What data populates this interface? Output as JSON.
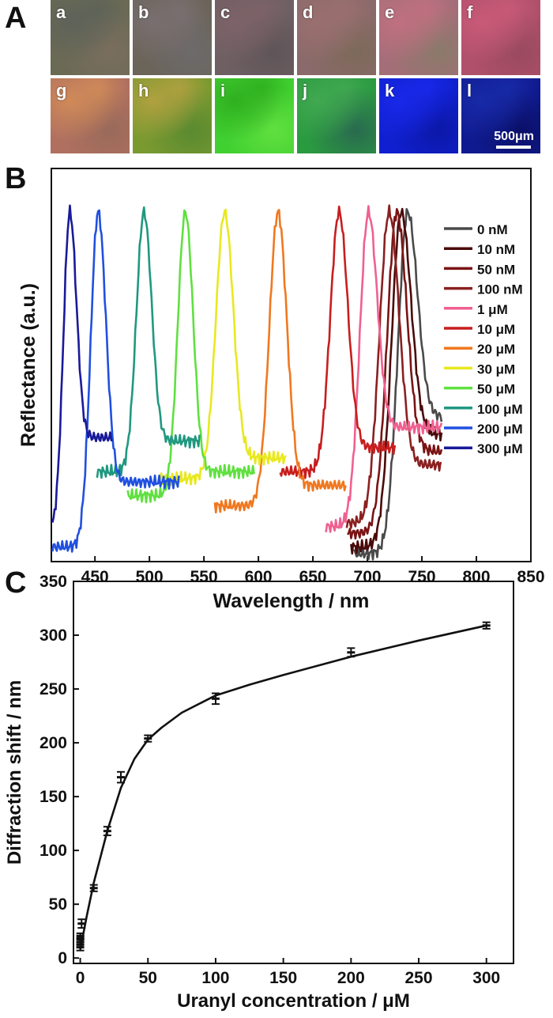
{
  "panel_labels": {
    "a": "A",
    "b": "B",
    "c": "C"
  },
  "photos": {
    "tiles": [
      {
        "letter": "a",
        "colors": [
          "#6b6a55",
          "#5e6358",
          "#7a6e5e"
        ]
      },
      {
        "letter": "b",
        "colors": [
          "#6a6459",
          "#7a6f70",
          "#6d6a6b"
        ]
      },
      {
        "letter": "c",
        "colors": [
          "#6e5f63",
          "#7d6368",
          "#5f5558"
        ]
      },
      {
        "letter": "d",
        "colors": [
          "#8a6a6a",
          "#9b6f70",
          "#7d6a5a"
        ]
      },
      {
        "letter": "e",
        "colors": [
          "#a46e78",
          "#c07080",
          "#8a7a6a"
        ]
      },
      {
        "letter": "f",
        "colors": [
          "#b0506a",
          "#c85a78",
          "#9a4a60"
        ]
      },
      {
        "letter": "g",
        "colors": [
          "#b07060",
          "#d08a58",
          "#9a6a5a"
        ]
      },
      {
        "letter": "h",
        "colors": [
          "#7a9a30",
          "#b0a040",
          "#5a8a30"
        ]
      },
      {
        "letter": "i",
        "colors": [
          "#40d030",
          "#30b020",
          "#60e040"
        ]
      },
      {
        "letter": "j",
        "colors": [
          "#2a9a40",
          "#40a850",
          "#2a6a50"
        ]
      },
      {
        "letter": "k",
        "colors": [
          "#1020d0",
          "#1828e8",
          "#0c18a8"
        ]
      },
      {
        "letter": "l",
        "colors": [
          "#101a90",
          "#182aa8",
          "#0a1068"
        ]
      }
    ],
    "scale_bar": "500μm"
  },
  "chart_data": [
    {
      "type": "line",
      "xlabel": "Wavelength / nm",
      "ylabel": "Reflectance (a.u.)",
      "xlim": [
        410,
        850
      ],
      "xticks": [
        450,
        500,
        550,
        600,
        650,
        700,
        750,
        800,
        850
      ],
      "legend_position": "right",
      "series": [
        {
          "name": "0 nM",
          "color": "#4a4a4a",
          "peak": 737,
          "start": 688,
          "end": 768,
          "base_left": 0.0,
          "base_right": 0.4,
          "width": 9
        },
        {
          "name": "10 nM",
          "color": "#4a0a0a",
          "peak": 731,
          "start": 685,
          "end": 768,
          "base_left": 0.02,
          "base_right": 0.35,
          "width": 9
        },
        {
          "name": "50 nM",
          "color": "#7a1414",
          "peak": 727,
          "start": 682,
          "end": 768,
          "base_left": 0.06,
          "base_right": 0.3,
          "width": 9
        },
        {
          "name": "100 nM",
          "color": "#8a2020",
          "peak": 720,
          "start": 681,
          "end": 768,
          "base_left": 0.09,
          "base_right": 0.26,
          "width": 9
        },
        {
          "name": "1 μM",
          "color": "#f06090",
          "peak": 701,
          "start": 662,
          "end": 768,
          "base_left": 0.08,
          "base_right": 0.37,
          "width": 8
        },
        {
          "name": "10 μM",
          "color": "#c81e1e",
          "peak": 674,
          "start": 620,
          "end": 726,
          "base_left": 0.24,
          "base_right": 0.31,
          "width": 8
        },
        {
          "name": "20 μM",
          "color": "#f07820",
          "peak": 618,
          "start": 560,
          "end": 680,
          "base_left": 0.14,
          "base_right": 0.2,
          "width": 8
        },
        {
          "name": "30 μM",
          "color": "#e8e820",
          "peak": 569,
          "start": 510,
          "end": 625,
          "base_left": 0.22,
          "base_right": 0.28,
          "width": 8
        },
        {
          "name": "50 μM",
          "color": "#60e040",
          "peak": 533,
          "start": 480,
          "end": 596,
          "base_left": 0.17,
          "base_right": 0.24,
          "width": 7
        },
        {
          "name": "100 μM",
          "color": "#209880",
          "peak": 495,
          "start": 452,
          "end": 546,
          "base_left": 0.24,
          "base_right": 0.33,
          "width": 7
        },
        {
          "name": "200 μM",
          "color": "#2050e0",
          "peak": 453,
          "start": 411,
          "end": 527,
          "base_left": 0.02,
          "base_right": 0.21,
          "width": 7
        },
        {
          "name": "300 μM",
          "color": "#1a1a9a",
          "peak": 427,
          "start": 411,
          "end": 466,
          "base_left": 0.06,
          "base_right": 0.34,
          "width": 6
        }
      ]
    },
    {
      "type": "scatter",
      "xlabel": "Uranyl concentration / μM",
      "ylabel": "Diffraction shift / nm",
      "xlim": [
        -5,
        320
      ],
      "ylim": [
        -5,
        350
      ],
      "xticks": [
        0,
        50,
        100,
        150,
        200,
        250,
        300
      ],
      "yticks": [
        0,
        50,
        100,
        150,
        200,
        250,
        300,
        350
      ],
      "points": [
        {
          "x": 0,
          "y": 10,
          "err": 3
        },
        {
          "x": 0.01,
          "y": 15,
          "err": 3
        },
        {
          "x": 0.05,
          "y": 18,
          "err": 3
        },
        {
          "x": 0.1,
          "y": 20,
          "err": 3
        },
        {
          "x": 1,
          "y": 32,
          "err": 4
        },
        {
          "x": 10,
          "y": 65,
          "err": 3
        },
        {
          "x": 20,
          "y": 118,
          "err": 4
        },
        {
          "x": 30,
          "y": 168,
          "err": 5
        },
        {
          "x": 50,
          "y": 204,
          "err": 3
        },
        {
          "x": 100,
          "y": 241,
          "err": 5
        },
        {
          "x": 200,
          "y": 284,
          "err": 4
        },
        {
          "x": 300,
          "y": 309,
          "err": 3
        }
      ],
      "fit": [
        [
          0,
          8
        ],
        [
          5,
          40
        ],
        [
          10,
          70
        ],
        [
          20,
          118
        ],
        [
          30,
          158
        ],
        [
          40,
          185
        ],
        [
          50,
          203
        ],
        [
          60,
          214
        ],
        [
          75,
          228
        ],
        [
          100,
          244
        ],
        [
          125,
          254
        ],
        [
          150,
          263
        ],
        [
          200,
          280
        ],
        [
          250,
          295
        ],
        [
          300,
          309
        ]
      ]
    }
  ]
}
